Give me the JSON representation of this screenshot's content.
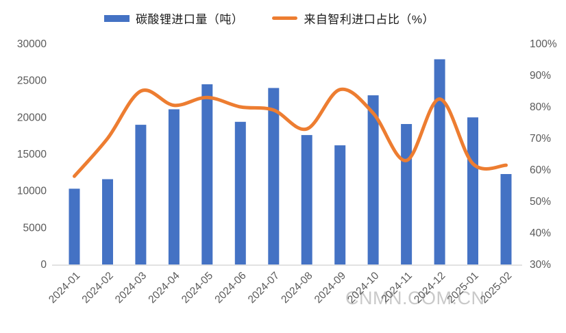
{
  "legend": {
    "position": "top"
  },
  "watermark": {
    "text": "CNMN.COM.CN"
  },
  "colors": {
    "bar": "#4472C4",
    "line": "#ED7D31",
    "axis_text": "#595959",
    "axis_line": "#D9D9D9",
    "legend_text": "#1a1a1a",
    "watermark": "#c7c7c7",
    "background": "#ffffff"
  },
  "chart_data": {
    "type": "bar",
    "subtype": "combo-bar-line-dual-axis",
    "title": "",
    "categories": [
      "2024-01",
      "2024-02",
      "2024-03",
      "2024-04",
      "2024-05",
      "2024-06",
      "2024-07",
      "2024-08",
      "2024-09",
      "2024-10",
      "2024-11",
      "2024-12",
      "2025-01",
      "2025-02"
    ],
    "series": [
      {
        "name": "碳酸锂进口量（吨）",
        "type": "bar",
        "axis": "left",
        "values": [
          10300,
          11600,
          19000,
          21100,
          24500,
          19400,
          24000,
          17600,
          16200,
          23000,
          19100,
          27900,
          20000,
          12300
        ]
      },
      {
        "name": "来自智利进口占比（%）",
        "type": "line",
        "axis": "right",
        "smooth": true,
        "values": [
          58,
          70,
          85,
          80.5,
          83,
          80,
          79,
          73,
          85.5,
          78,
          63,
          82.5,
          62,
          61.5
        ]
      }
    ],
    "left_axis": {
      "min": 0,
      "max": 30000,
      "step": 5000,
      "ticks": [
        0,
        5000,
        10000,
        15000,
        20000,
        25000,
        30000
      ]
    },
    "right_axis": {
      "min": 30,
      "max": 100,
      "step": 10,
      "ticks": [
        30,
        40,
        50,
        60,
        70,
        80,
        90,
        100
      ],
      "suffix": "%"
    },
    "grid": false,
    "legend_position": "top",
    "x_label_rotation": -45
  }
}
